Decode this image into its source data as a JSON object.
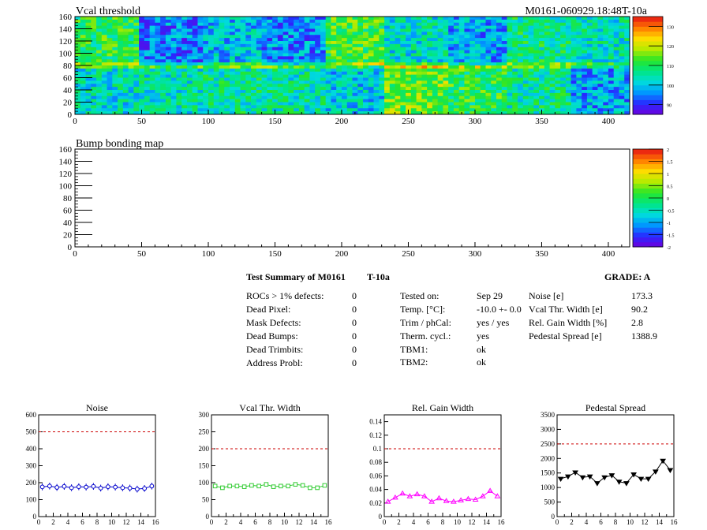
{
  "header": {
    "left_title": "Vcal threshold",
    "right_title": "M0161-060929.18:48T-10a"
  },
  "colors": {
    "stroke": "#000000",
    "dashed_limit": "#cc0000",
    "noise_series": "#0000cc",
    "vcal_series": "#33cc33",
    "gain_series": "#ff00ff",
    "pedestal_series": "#000000"
  },
  "map1": {
    "title": "Vcal threshold",
    "x_ticks": [
      "0",
      "50",
      "100",
      "150",
      "200",
      "250",
      "300",
      "350",
      "400"
    ],
    "y_ticks": [
      "0",
      "20",
      "40",
      "60",
      "80",
      "100",
      "120",
      "140",
      "160"
    ],
    "xlim": [
      0,
      416
    ],
    "ylim": [
      0,
      160
    ],
    "palette_ticks": [
      "90",
      "100",
      "110",
      "120",
      "130"
    ],
    "palette_range": [
      85,
      135
    ]
  },
  "map2": {
    "title": "Bump bonding map",
    "x_ticks": [
      "0",
      "50",
      "100",
      "150",
      "200",
      "250",
      "300",
      "350",
      "400"
    ],
    "y_ticks": [
      "0",
      "20",
      "40",
      "60",
      "80",
      "100",
      "120",
      "140",
      "160"
    ],
    "xlim": [
      0,
      416
    ],
    "ylim": [
      0,
      160
    ],
    "palette_ticks": [
      "-2",
      "-1.5",
      "-1",
      "-0.5",
      "0",
      "0.5",
      "1",
      "1.5",
      "2"
    ],
    "palette_range": [
      -2,
      2
    ]
  },
  "summary": {
    "title": "Test Summary of M0161",
    "temp_tag": "T-10a",
    "grade": "GRADE:  A",
    "col1": [
      {
        "label": "ROCs > 1% defects:",
        "value": "0"
      },
      {
        "label": "Dead Pixel:",
        "value": "0"
      },
      {
        "label": "Mask Defects:",
        "value": "0"
      },
      {
        "label": "Dead Bumps:",
        "value": "0"
      },
      {
        "label": "Dead Trimbits:",
        "value": "0"
      },
      {
        "label": "Address Probl:",
        "value": "0"
      }
    ],
    "col2": [
      {
        "label": "Tested on:",
        "value": "Sep 29"
      },
      {
        "label": "Temp. [°C]:",
        "value": "-10.0 +- 0.0"
      },
      {
        "label": "Trim / phCal:",
        "value": "yes / yes"
      },
      {
        "label": "Therm. cycl.:",
        "value": "yes"
      },
      {
        "label": "TBM1:",
        "value": "ok"
      },
      {
        "label": "TBM2:",
        "value": "ok"
      }
    ],
    "col3": [
      {
        "label": "Noise [e]",
        "value": "173.3"
      },
      {
        "label": "Vcal Thr. Width [e]",
        "value": "90.2"
      },
      {
        "label": "Rel. Gain Width [%]",
        "value": "2.8"
      },
      {
        "label": "Pedestal Spread [e]",
        "value": "1388.9"
      }
    ]
  },
  "chart_data": [
    {
      "type": "heatmap",
      "title": "Vcal threshold",
      "xlim": [
        0,
        416
      ],
      "ylim": [
        0,
        160
      ],
      "zlim": [
        85,
        135
      ],
      "roc_blocks": {
        "upper_row": [
          110,
          95,
          100,
          96,
          112,
          103,
          98,
          107,
          104
        ],
        "lower_row": [
          103,
          104,
          106,
          105,
          101,
          115,
          110,
          106,
          98
        ]
      }
    },
    {
      "type": "heatmap",
      "title": "Bump bonding map",
      "xlim": [
        0,
        416
      ],
      "ylim": [
        0,
        160
      ],
      "zlim": [
        -2,
        2
      ],
      "values": []
    },
    {
      "type": "scatter",
      "title": "Noise",
      "x": [
        0,
        1,
        2,
        3,
        4,
        5,
        6,
        7,
        8,
        9,
        10,
        11,
        12,
        13,
        14,
        15
      ],
      "values": [
        175,
        180,
        172,
        178,
        170,
        176,
        174,
        178,
        168,
        176,
        174,
        170,
        168,
        162,
        166,
        180
      ],
      "errors": [
        20,
        20,
        20,
        20,
        20,
        20,
        20,
        20,
        20,
        20,
        20,
        20,
        20,
        20,
        20,
        20
      ],
      "xlim": [
        0,
        16
      ],
      "ylim": [
        0,
        600
      ],
      "y_ticks": [
        "0",
        "100",
        "200",
        "300",
        "400",
        "500",
        "600"
      ],
      "x_ticks": [
        "0",
        "2",
        "4",
        "6",
        "8",
        "10",
        "12",
        "14",
        "16"
      ],
      "limit": 500
    },
    {
      "type": "scatter",
      "title": "Vcal Thr. Width",
      "x": [
        0,
        1,
        2,
        3,
        4,
        5,
        6,
        7,
        8,
        9,
        10,
        11,
        12,
        13,
        14,
        15
      ],
      "values": [
        90,
        85,
        90,
        90,
        88,
        92,
        90,
        95,
        88,
        90,
        90,
        95,
        92,
        85,
        85,
        92
      ],
      "xlim": [
        0,
        16
      ],
      "ylim": [
        0,
        300
      ],
      "y_ticks": [
        "0",
        "50",
        "100",
        "150",
        "200",
        "250",
        "300"
      ],
      "x_ticks": [
        "0",
        "2",
        "4",
        "6",
        "8",
        "10",
        "12",
        "14",
        "16"
      ],
      "limit": 200
    },
    {
      "type": "scatter",
      "title": "Rel. Gain Width",
      "x": [
        0,
        1,
        2,
        3,
        4,
        5,
        6,
        7,
        8,
        9,
        10,
        11,
        12,
        13,
        14,
        15
      ],
      "values": [
        0.022,
        0.028,
        0.034,
        0.03,
        0.033,
        0.03,
        0.022,
        0.027,
        0.023,
        0.022,
        0.024,
        0.026,
        0.025,
        0.03,
        0.038,
        0.03
      ],
      "xlim": [
        0,
        16
      ],
      "ylim": [
        0,
        0.15
      ],
      "y_ticks": [
        "0",
        "0.02",
        "0.04",
        "0.06",
        "0.08",
        "0.1",
        "0.12",
        "0.14"
      ],
      "x_ticks": [
        "0",
        "2",
        "4",
        "6",
        "8",
        "10",
        "12",
        "14",
        "16"
      ],
      "limit": 0.1
    },
    {
      "type": "line",
      "title": "Pedestal Spread",
      "x": [
        0,
        1,
        2,
        3,
        4,
        5,
        6,
        7,
        8,
        9,
        10,
        11,
        12,
        13,
        14,
        15
      ],
      "values": [
        1300,
        1380,
        1520,
        1350,
        1380,
        1150,
        1350,
        1420,
        1200,
        1150,
        1450,
        1300,
        1300,
        1550,
        1920,
        1600
      ],
      "xlim": [
        0,
        16
      ],
      "ylim": [
        0,
        3500
      ],
      "y_ticks": [
        "0",
        "500",
        "1000",
        "1500",
        "2000",
        "2500",
        "3000",
        "3500"
      ],
      "x_ticks": [
        "0",
        "2",
        "4",
        "6",
        "8",
        "10",
        "12",
        "14",
        "16"
      ],
      "limit": 2500
    }
  ]
}
